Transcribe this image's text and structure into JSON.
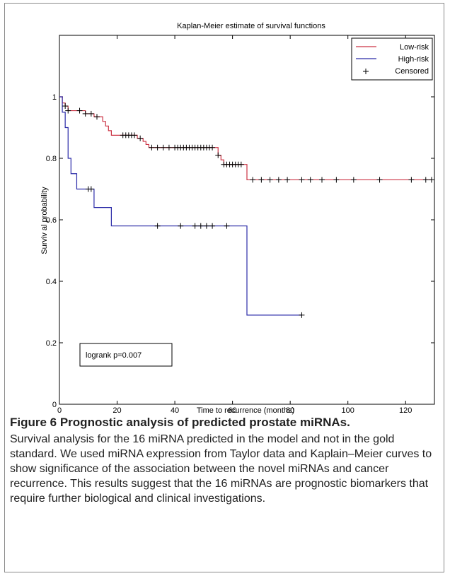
{
  "chart_data": {
    "type": "line",
    "title": "Kaplan-Meier estimate of survival functions",
    "xlabel": "Time to recurrence (months)",
    "ylabel": "Surviv al probability",
    "xlim": [
      0,
      130
    ],
    "ylim": [
      0,
      1.2
    ],
    "xticks": [
      0,
      20,
      40,
      60,
      80,
      100,
      120
    ],
    "yticks": [
      0,
      0.2,
      0.4,
      0.6,
      0.8,
      1
    ],
    "grid": false,
    "legend_position": "top-right",
    "legend": [
      "Low-risk",
      "High-risk",
      "Censored"
    ],
    "series": [
      {
        "name": "Low-risk",
        "color": "#cc3344",
        "steps": [
          [
            0,
            1.0
          ],
          [
            1,
            0.98
          ],
          [
            2,
            0.97
          ],
          [
            3,
            0.955
          ],
          [
            9,
            0.945
          ],
          [
            12,
            0.935
          ],
          [
            15,
            0.92
          ],
          [
            16,
            0.905
          ],
          [
            17,
            0.89
          ],
          [
            18,
            0.875
          ],
          [
            27,
            0.865
          ],
          [
            29,
            0.855
          ],
          [
            30,
            0.845
          ],
          [
            31,
            0.835
          ],
          [
            55,
            0.81
          ],
          [
            56,
            0.795
          ],
          [
            57,
            0.78
          ],
          [
            65,
            0.73
          ],
          [
            129,
            0.73
          ]
        ],
        "censored_x": [
          2,
          3,
          7,
          9,
          11,
          13,
          22,
          23,
          24,
          25,
          26,
          28,
          32,
          34,
          36,
          38,
          40,
          41,
          42,
          43,
          44,
          45,
          46,
          47,
          48,
          49,
          50,
          51,
          52,
          53,
          55,
          57,
          58,
          59,
          60,
          61,
          62,
          63,
          67,
          70,
          73,
          76,
          79,
          84,
          87,
          91,
          96,
          102,
          111,
          122,
          127,
          129
        ]
      },
      {
        "name": "High-risk",
        "color": "#2b2ba8",
        "steps": [
          [
            0,
            1.0
          ],
          [
            1,
            0.95
          ],
          [
            2,
            0.9
          ],
          [
            3,
            0.8
          ],
          [
            4,
            0.75
          ],
          [
            6,
            0.7
          ],
          [
            12,
            0.64
          ],
          [
            18,
            0.58
          ],
          [
            65,
            0.29
          ],
          [
            84,
            0.29
          ]
        ],
        "censored_x": [
          10,
          11,
          34,
          42,
          47,
          49,
          51,
          53,
          58,
          84
        ]
      }
    ],
    "annotation": "logrank p=0.007"
  },
  "caption": {
    "title": "Figure 6 Prognostic analysis of predicted prostate miRNAs.",
    "text": "Survival analysis for the 16 miRNA predicted in the model and not in the gold standard. We used miRNA expression from Taylor data and Kaplain–Meier curves to show significance of the association between the novel miRNAs and cancer recurrence. This results suggest that the 16 miRNAs are prognostic biomarkers that require further biological and clinical investigations."
  }
}
